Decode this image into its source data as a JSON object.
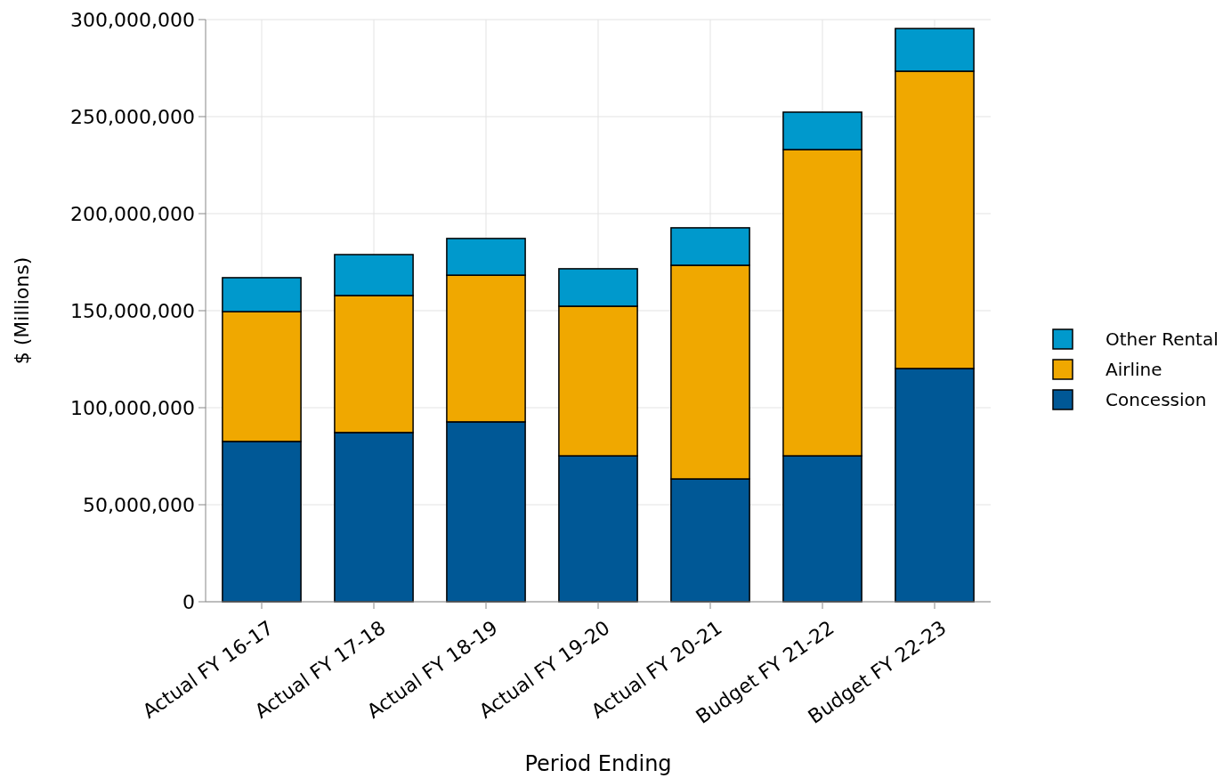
{
  "chart_data": {
    "type": "bar",
    "stacked": true,
    "xlabel": "Period Ending",
    "ylabel": "$ (Millions)",
    "categories": [
      "Actual FY 16-17",
      "Actual FY 17-18",
      "Actual FY 18-19",
      "Actual FY 19-20",
      "Actual FY 20-21",
      "Budget FY 21-22",
      "Budget FY 22-23"
    ],
    "series": [
      {
        "name": "Concession",
        "color": "#005896",
        "values": [
          82600000,
          87200000,
          92700000,
          75200000,
          63300000,
          75200000,
          120200000
        ]
      },
      {
        "name": "Airline",
        "color": "#f0a800",
        "values": [
          66900000,
          70600000,
          75600000,
          77100000,
          110100000,
          157800000,
          153200000
        ]
      },
      {
        "name": "Other Rental",
        "color": "#0099cc",
        "values": [
          17500000,
          21100000,
          18900000,
          19300000,
          19300000,
          19300000,
          22000000
        ]
      }
    ],
    "ylim": [
      0,
      300000000
    ],
    "yticks": [
      {
        "value": 0,
        "label": "0"
      },
      {
        "value": 50000000,
        "label": "50,000,000"
      },
      {
        "value": 100000000,
        "label": "100,000,000"
      },
      {
        "value": 150000000,
        "label": "150,000,000"
      },
      {
        "value": 200000000,
        "label": "200,000,000"
      },
      {
        "value": 250000000,
        "label": "250,000,000"
      },
      {
        "value": 300000000,
        "label": "300,000,000"
      }
    ],
    "grid": true,
    "legend": "right"
  }
}
